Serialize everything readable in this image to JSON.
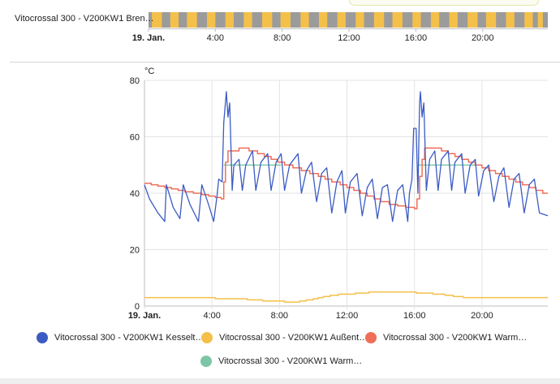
{
  "colors": {
    "kessel": "#3b5bc3",
    "aussen": "#f4c04a",
    "warm1": "#ef6e58",
    "warm2": "#7cc6a6",
    "on": "#f4c04a",
    "off": "#9b9b9b"
  },
  "timeline": {
    "label": "Vitocrossal 300 - V200KW1 Bren…",
    "x_min": 0,
    "x_max": 23.9,
    "x_ticks": [
      {
        "v": 0,
        "label": "19. Jan.",
        "bold": true
      },
      {
        "v": 4,
        "label": "4:00"
      },
      {
        "v": 8,
        "label": "8:00"
      },
      {
        "v": 12,
        "label": "12:00"
      },
      {
        "v": 16,
        "label": "16:00"
      },
      {
        "v": 20,
        "label": "20:00"
      }
    ],
    "on_periods": [
      [
        0.2,
        0.8
      ],
      [
        1.3,
        1.8
      ],
      [
        2.3,
        2.9
      ],
      [
        3.5,
        4.0
      ],
      [
        4.6,
        5.1
      ],
      [
        5.7,
        6.2
      ],
      [
        6.8,
        7.4
      ],
      [
        7.9,
        8.5
      ],
      [
        9.1,
        9.6
      ],
      [
        10.2,
        10.7
      ],
      [
        11.3,
        11.8
      ],
      [
        12.4,
        12.9
      ],
      [
        13.5,
        14.1
      ],
      [
        14.6,
        15.2
      ],
      [
        15.8,
        16.3
      ],
      [
        16.9,
        17.4
      ],
      [
        18.0,
        18.5
      ],
      [
        19.1,
        19.7
      ],
      [
        20.2,
        20.8
      ],
      [
        21.4,
        21.9
      ],
      [
        22.5,
        23.0
      ],
      [
        23.3,
        23.6
      ]
    ]
  },
  "chart_data": {
    "type": "line",
    "ylabel": "°C",
    "xlim": [
      0,
      23.9
    ],
    "ylim": [
      0,
      80
    ],
    "y_ticks": [
      0,
      20,
      40,
      60,
      80
    ],
    "x_ticks": [
      {
        "v": 0,
        "label": "19. Jan.",
        "bold": true
      },
      {
        "v": 4,
        "label": "4:00"
      },
      {
        "v": 8,
        "label": "8:00"
      },
      {
        "v": 12,
        "label": "12:00"
      },
      {
        "v": 16,
        "label": "16:00"
      },
      {
        "v": 20,
        "label": "20:00"
      }
    ],
    "series": [
      {
        "name": "Vitocrossal 300 - V200KW1 Kesselt…",
        "color": "#3b5bc3",
        "step": false,
        "points": [
          [
            0,
            43
          ],
          [
            0.3,
            38
          ],
          [
            0.8,
            33
          ],
          [
            1.2,
            30
          ],
          [
            1.3,
            43
          ],
          [
            1.7,
            35
          ],
          [
            2.1,
            31
          ],
          [
            2.3,
            43
          ],
          [
            2.7,
            36
          ],
          [
            3.2,
            30
          ],
          [
            3.4,
            43
          ],
          [
            3.8,
            36
          ],
          [
            4.1,
            30
          ],
          [
            4.3,
            39
          ],
          [
            4.4,
            45
          ],
          [
            4.6,
            44
          ],
          [
            4.7,
            65
          ],
          [
            4.85,
            76
          ],
          [
            4.95,
            67
          ],
          [
            5.05,
            72
          ],
          [
            5.2,
            41
          ],
          [
            5.3,
            50
          ],
          [
            5.6,
            52
          ],
          [
            5.8,
            41
          ],
          [
            6.0,
            50
          ],
          [
            6.4,
            55
          ],
          [
            6.6,
            41
          ],
          [
            6.9,
            51
          ],
          [
            7.3,
            54
          ],
          [
            7.5,
            41
          ],
          [
            7.8,
            51
          ],
          [
            8.1,
            54
          ],
          [
            8.3,
            41
          ],
          [
            8.6,
            50
          ],
          [
            9.1,
            54
          ],
          [
            9.3,
            40
          ],
          [
            9.6,
            48
          ],
          [
            9.9,
            51
          ],
          [
            10.2,
            37
          ],
          [
            10.5,
            47
          ],
          [
            10.8,
            49
          ],
          [
            11.1,
            33
          ],
          [
            11.4,
            44
          ],
          [
            11.7,
            48
          ],
          [
            11.9,
            33
          ],
          [
            12.2,
            44
          ],
          [
            12.6,
            47
          ],
          [
            12.9,
            32
          ],
          [
            13.2,
            42
          ],
          [
            13.5,
            45
          ],
          [
            13.8,
            31
          ],
          [
            14.1,
            42
          ],
          [
            14.4,
            43
          ],
          [
            14.7,
            30
          ],
          [
            15.0,
            41
          ],
          [
            15.3,
            43
          ],
          [
            15.6,
            30
          ],
          [
            15.7,
            40
          ],
          [
            15.85,
            45
          ],
          [
            15.95,
            63
          ],
          [
            16.1,
            63
          ],
          [
            16.2,
            40
          ],
          [
            16.3,
            72
          ],
          [
            16.35,
            76
          ],
          [
            16.45,
            67
          ],
          [
            16.55,
            72
          ],
          [
            16.7,
            41
          ],
          [
            16.9,
            52
          ],
          [
            17.2,
            55
          ],
          [
            17.4,
            41
          ],
          [
            17.6,
            52
          ],
          [
            18.0,
            55
          ],
          [
            18.2,
            41
          ],
          [
            18.4,
            51
          ],
          [
            18.8,
            54
          ],
          [
            19.0,
            40
          ],
          [
            19.3,
            50
          ],
          [
            19.6,
            52
          ],
          [
            19.8,
            39
          ],
          [
            20.1,
            48
          ],
          [
            20.4,
            50
          ],
          [
            20.7,
            37
          ],
          [
            21.0,
            46
          ],
          [
            21.3,
            49
          ],
          [
            21.6,
            35
          ],
          [
            21.9,
            45
          ],
          [
            22.2,
            47
          ],
          [
            22.5,
            33
          ],
          [
            22.8,
            43
          ],
          [
            23.1,
            45
          ],
          [
            23.4,
            33
          ],
          [
            23.9,
            32
          ]
        ]
      },
      {
        "name": "Vitocrossal 300 - V200KW1 Außent…",
        "color": "#f4c04a",
        "step": true,
        "points": [
          [
            0,
            3
          ],
          [
            4.2,
            2.6
          ],
          [
            6.1,
            2.2
          ],
          [
            7.0,
            1.8
          ],
          [
            8.3,
            1.4
          ],
          [
            9.2,
            1.8
          ],
          [
            9.6,
            2.2
          ],
          [
            10.0,
            2.6
          ],
          [
            10.3,
            3
          ],
          [
            10.6,
            3.4
          ],
          [
            11.0,
            3.8
          ],
          [
            11.5,
            4.2
          ],
          [
            12.5,
            4.6
          ],
          [
            13.3,
            5.0
          ],
          [
            16.1,
            4.6
          ],
          [
            17.1,
            4.2
          ],
          [
            17.8,
            3.8
          ],
          [
            18.3,
            3.4
          ],
          [
            18.9,
            3
          ],
          [
            23.9,
            3
          ]
        ]
      },
      {
        "name": "Vitocrossal 300 - V200KW1 Warm…",
        "color": "#ef6e58",
        "step": true,
        "points": [
          [
            0,
            43.5
          ],
          [
            0.4,
            43
          ],
          [
            0.8,
            42.5
          ],
          [
            1.2,
            42
          ],
          [
            1.6,
            41.5
          ],
          [
            2.0,
            41
          ],
          [
            2.4,
            40.5
          ],
          [
            2.9,
            40
          ],
          [
            3.4,
            39.5
          ],
          [
            3.8,
            39
          ],
          [
            4.2,
            38.5
          ],
          [
            4.55,
            38
          ],
          [
            4.7,
            44
          ],
          [
            4.8,
            51
          ],
          [
            4.95,
            55
          ],
          [
            5.6,
            56
          ],
          [
            6.2,
            55
          ],
          [
            6.7,
            54
          ],
          [
            7.1,
            53
          ],
          [
            7.5,
            52
          ],
          [
            7.9,
            51
          ],
          [
            8.3,
            50
          ],
          [
            8.8,
            49
          ],
          [
            9.3,
            48
          ],
          [
            9.8,
            47
          ],
          [
            10.3,
            46
          ],
          [
            10.7,
            45
          ],
          [
            11.1,
            44
          ],
          [
            11.6,
            43
          ],
          [
            12.0,
            42
          ],
          [
            12.4,
            41
          ],
          [
            12.8,
            40
          ],
          [
            13.2,
            39
          ],
          [
            13.6,
            38
          ],
          [
            14.0,
            37
          ],
          [
            14.5,
            36
          ],
          [
            15.0,
            35.5
          ],
          [
            15.5,
            35
          ],
          [
            16.0,
            34.5
          ],
          [
            16.15,
            38
          ],
          [
            16.3,
            46
          ],
          [
            16.45,
            52
          ],
          [
            16.6,
            56
          ],
          [
            17.0,
            56
          ],
          [
            17.6,
            55
          ],
          [
            18.0,
            54
          ],
          [
            18.4,
            53
          ],
          [
            18.8,
            52
          ],
          [
            19.2,
            51
          ],
          [
            19.6,
            50
          ],
          [
            20.0,
            49
          ],
          [
            20.4,
            48
          ],
          [
            20.8,
            47
          ],
          [
            21.2,
            46
          ],
          [
            21.6,
            45
          ],
          [
            22.0,
            44
          ],
          [
            22.4,
            43
          ],
          [
            22.8,
            42
          ],
          [
            23.2,
            41
          ],
          [
            23.6,
            40
          ],
          [
            23.9,
            40
          ]
        ]
      },
      {
        "name": "Vitocrossal 300 - V200KW1 Warm…",
        "color": "#7cc6a6",
        "step": true,
        "segments": [
          [
            [
              4.7,
              50
            ],
            [
              8.1,
              50
            ]
          ],
          [
            [
              16.2,
              50
            ],
            [
              20.0,
              50
            ]
          ]
        ]
      }
    ]
  }
}
